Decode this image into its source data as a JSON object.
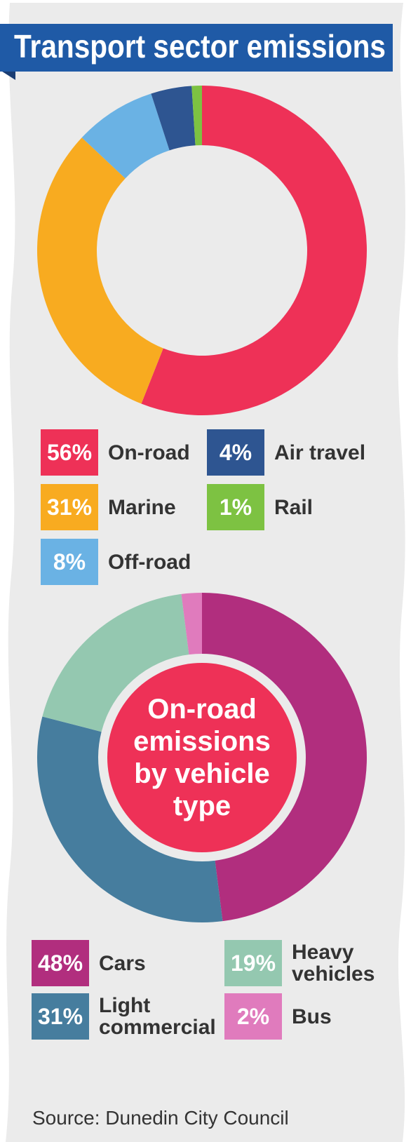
{
  "chart_data": [
    {
      "type": "pie",
      "title": "Transport sector emissions",
      "categories": [
        "On-road",
        "Marine",
        "Off-road",
        "Air travel",
        "Rail"
      ],
      "values": [
        56,
        31,
        8,
        4,
        1
      ],
      "value_labels": [
        "56%",
        "31%",
        "8%",
        "4%",
        "1%"
      ],
      "colors": [
        "#ee3157",
        "#f8ab20",
        "#6ab2e4",
        "#2e5591",
        "#7dc242"
      ]
    },
    {
      "type": "pie",
      "title": "On-road emissions by vehicle type",
      "categories": [
        "Cars",
        "Light commercial",
        "Heavy vehicles",
        "Bus"
      ],
      "values": [
        48,
        31,
        19,
        2
      ],
      "value_labels": [
        "48%",
        "31%",
        "19%",
        "2%"
      ],
      "colors": [
        "#b12e7e",
        "#467d9e",
        "#94c8b0",
        "#e07bbd"
      ]
    }
  ],
  "source": "Source: Dunedin City Council"
}
